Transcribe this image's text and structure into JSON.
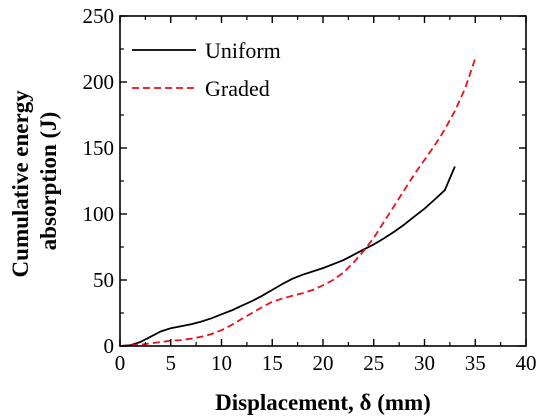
{
  "chart_data": {
    "type": "line",
    "title": "",
    "xlabel": "Displacement, δ (mm)",
    "ylabel_line1": "Cumulative energy",
    "ylabel_line2": "absorption (J)",
    "xlim": [
      0,
      40
    ],
    "ylim": [
      0,
      250
    ],
    "x_ticks": [
      0,
      5,
      10,
      15,
      20,
      25,
      30,
      35,
      40
    ],
    "y_ticks": [
      0,
      50,
      100,
      150,
      200,
      250
    ],
    "grid": false,
    "legend_position": "top-left",
    "series": [
      {
        "name": "Uniform",
        "color": "#000000",
        "dash": "solid",
        "x": [
          0,
          1,
          2,
          3,
          4,
          5,
          6,
          7,
          8,
          9,
          10,
          11,
          12,
          13,
          14,
          15,
          16,
          17,
          18,
          19,
          20,
          21,
          22,
          23,
          24,
          25,
          26,
          27,
          28,
          29,
          30,
          31,
          32,
          33
        ],
        "y": [
          0,
          0.5,
          3,
          7,
          11,
          13.5,
          15,
          16.5,
          18.5,
          21,
          24,
          27,
          30.5,
          34,
          38,
          42.5,
          47,
          51,
          54,
          56.5,
          59,
          62,
          65,
          69,
          73,
          77,
          81.5,
          86.5,
          92,
          98,
          104,
          111,
          118,
          136
        ]
      },
      {
        "name": "Graded",
        "color": "#e8101a",
        "dash": "dashed",
        "x": [
          0,
          1,
          2,
          3,
          4,
          5,
          6,
          7,
          8,
          9,
          10,
          11,
          12,
          13,
          14,
          15,
          16,
          17,
          18,
          19,
          20,
          21,
          22,
          23,
          24,
          25,
          26,
          27,
          28,
          29,
          30,
          31,
          32,
          33,
          34,
          35
        ],
        "y": [
          0,
          0.5,
          1,
          2,
          3,
          4,
          4.5,
          5.5,
          7,
          9,
          12,
          16,
          20.5,
          25,
          29.5,
          33.5,
          36,
          38,
          40,
          42.5,
          46,
          50,
          55.5,
          63,
          72,
          82,
          94,
          106,
          118,
          130,
          141,
          152,
          164,
          178,
          195,
          218
        ]
      }
    ]
  }
}
